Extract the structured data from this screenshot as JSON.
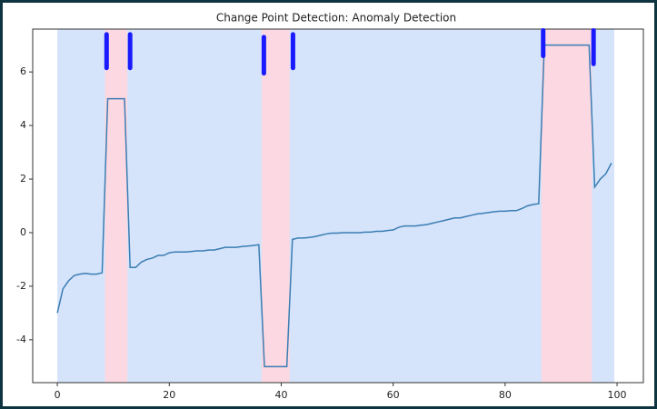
{
  "chart_data": {
    "type": "line",
    "title": "Change Point Detection: Anomaly Detection",
    "x": [
      0,
      1,
      2,
      3,
      4,
      5,
      6,
      7,
      8,
      9,
      10,
      11,
      12,
      13,
      14,
      15,
      16,
      17,
      18,
      19,
      20,
      21,
      22,
      23,
      24,
      25,
      26,
      27,
      28,
      29,
      30,
      31,
      32,
      33,
      34,
      35,
      36,
      37,
      38,
      39,
      40,
      41,
      42,
      43,
      44,
      45,
      46,
      47,
      48,
      49,
      50,
      51,
      52,
      53,
      54,
      55,
      56,
      57,
      58,
      59,
      60,
      61,
      62,
      63,
      64,
      65,
      66,
      67,
      68,
      69,
      70,
      71,
      72,
      73,
      74,
      75,
      76,
      77,
      78,
      79,
      80,
      81,
      82,
      83,
      84,
      85,
      86,
      87,
      88,
      89,
      90,
      91,
      92,
      93,
      94,
      95,
      96,
      97,
      98,
      99
    ],
    "series": [
      {
        "color": "#3b7db3",
        "values": [
          -3,
          -2.1,
          -1.8,
          -1.6,
          -1.55,
          -1.52,
          -1.55,
          -1.55,
          -1.5,
          5,
          5,
          5,
          5,
          -1.3,
          -1.3,
          -1.1,
          -1.0,
          -0.95,
          -0.85,
          -0.85,
          -0.75,
          -0.72,
          -0.72,
          -0.72,
          -0.7,
          -0.68,
          -0.68,
          -0.65,
          -0.65,
          -0.6,
          -0.55,
          -0.55,
          -0.55,
          -0.52,
          -0.5,
          -0.48,
          -0.45,
          -5,
          -5,
          -5,
          -5,
          -5,
          -0.25,
          -0.2,
          -0.2,
          -0.18,
          -0.15,
          -0.1,
          -0.05,
          -0.02,
          -0.02,
          0,
          0,
          0,
          0,
          0.02,
          0.02,
          0.05,
          0.05,
          0.08,
          0.1,
          0.2,
          0.25,
          0.25,
          0.25,
          0.28,
          0.3,
          0.35,
          0.4,
          0.45,
          0.5,
          0.55,
          0.55,
          0.6,
          0.65,
          0.7,
          0.72,
          0.75,
          0.78,
          0.8,
          0.8,
          0.82,
          0.82,
          0.9,
          1.0,
          1.05,
          1.08,
          7,
          7,
          7,
          7,
          7,
          7,
          7,
          7,
          7,
          1.7,
          2.0,
          2.2,
          2.6
        ]
      }
    ],
    "spans": [
      {
        "start": 0,
        "end": 99.5,
        "color": "#d5e4fa"
      },
      {
        "start": 8.5,
        "end": 12.5,
        "color": "#fbd8e2"
      },
      {
        "start": 36.5,
        "end": 41.5,
        "color": "#fbd8e2"
      },
      {
        "start": 86.5,
        "end": 95.5,
        "color": "#fbd8e2"
      }
    ],
    "markers": {
      "color": "#1a1aff",
      "segments": [
        {
          "x": 8.8,
          "y": [
            6.15,
            7.4
          ]
        },
        {
          "x": 13.0,
          "y": [
            6.15,
            7.4
          ]
        },
        {
          "x": 36.9,
          "y": [
            5.95,
            7.3
          ]
        },
        {
          "x": 42.1,
          "y": [
            6.15,
            7.4
          ]
        },
        {
          "x": 86.8,
          "y": [
            6.6,
            7.55
          ]
        },
        {
          "x": 95.8,
          "y": [
            6.3,
            7.55
          ]
        }
      ]
    },
    "xlim": [
      -4.4,
      104.7
    ],
    "ylim": [
      -5.6,
      7.6
    ],
    "xticks": [
      0,
      20,
      40,
      60,
      80,
      100
    ],
    "yticks": [
      -4,
      -2,
      0,
      2,
      4,
      6
    ]
  }
}
